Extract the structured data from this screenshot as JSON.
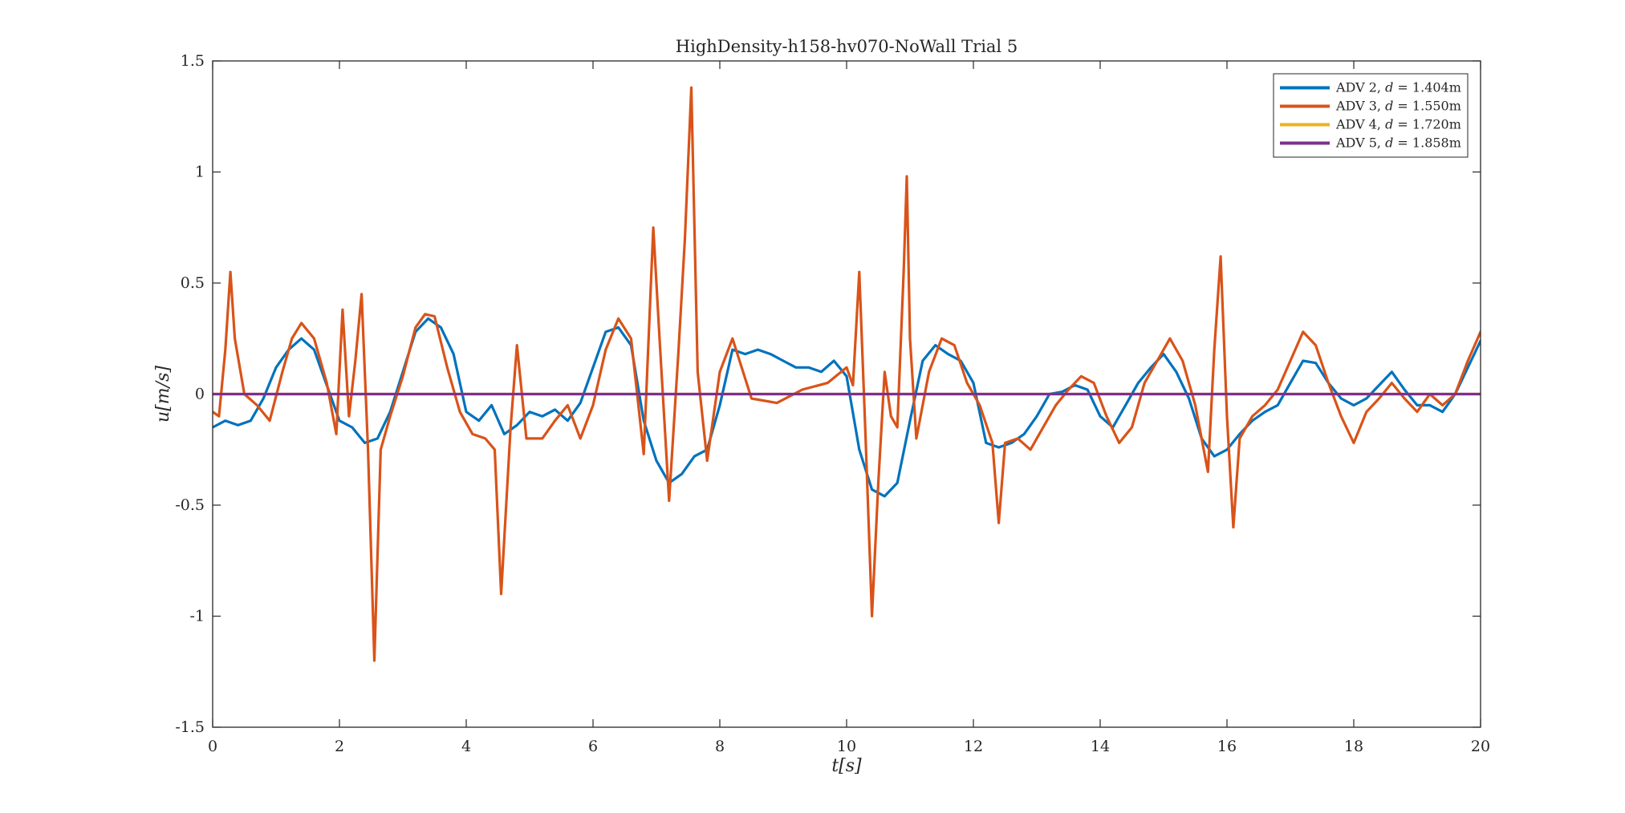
{
  "chart_data": {
    "type": "line",
    "title": "HighDensity-h158-hv070-NoWall Trial 5",
    "xlabel": "t[s]",
    "ylabel": "u[m/s]",
    "xlim": [
      0,
      20
    ],
    "ylim": [
      -1.5,
      1.5
    ],
    "xticks": [
      0,
      2,
      4,
      6,
      8,
      10,
      12,
      14,
      16,
      18,
      20
    ],
    "yticks": [
      -1.5,
      -1,
      -0.5,
      0,
      0.5,
      1,
      1.5
    ],
    "xtick_labels": [
      "0",
      "2",
      "4",
      "6",
      "8",
      "10",
      "12",
      "14",
      "16",
      "18",
      "20"
    ],
    "ytick_labels": [
      "-1.5",
      "-1",
      "-0.5",
      "0",
      "0.5",
      "1",
      "1.5"
    ],
    "grid": false,
    "legend_position": "top-right",
    "series": [
      {
        "name": "ADV 2, d = 1.404m",
        "legend_parts": [
          "ADV 2, ",
          "d",
          " = 1.404m"
        ],
        "color": "#0072BD",
        "x": [
          0,
          0.2,
          0.4,
          0.6,
          0.8,
          1.0,
          1.2,
          1.4,
          1.6,
          1.8,
          2.0,
          2.2,
          2.4,
          2.6,
          2.8,
          3.0,
          3.2,
          3.4,
          3.6,
          3.8,
          4.0,
          4.2,
          4.4,
          4.6,
          4.8,
          5.0,
          5.2,
          5.4,
          5.6,
          5.8,
          6.0,
          6.2,
          6.4,
          6.6,
          6.8,
          7.0,
          7.2,
          7.4,
          7.6,
          7.8,
          8.0,
          8.2,
          8.4,
          8.6,
          8.8,
          9.0,
          9.2,
          9.4,
          9.6,
          9.8,
          10.0,
          10.2,
          10.4,
          10.6,
          10.8,
          11.0,
          11.2,
          11.4,
          11.6,
          11.8,
          12.0,
          12.2,
          12.4,
          12.6,
          12.8,
          13.0,
          13.2,
          13.4,
          13.6,
          13.8,
          14.0,
          14.2,
          14.4,
          14.6,
          14.8,
          15.0,
          15.2,
          15.4,
          15.6,
          15.8,
          16.0,
          16.2,
          16.4,
          16.6,
          16.8,
          17.0,
          17.2,
          17.4,
          17.6,
          17.8,
          18.0,
          18.2,
          18.4,
          18.6,
          18.8,
          19.0,
          19.2,
          19.4,
          19.6,
          19.8,
          20.0
        ],
        "y": [
          -0.15,
          -0.12,
          -0.14,
          -0.12,
          -0.02,
          0.12,
          0.2,
          0.25,
          0.2,
          0.04,
          -0.12,
          -0.15,
          -0.22,
          -0.2,
          -0.08,
          0.1,
          0.28,
          0.34,
          0.3,
          0.18,
          -0.08,
          -0.12,
          -0.05,
          -0.18,
          -0.14,
          -0.08,
          -0.1,
          -0.07,
          -0.12,
          -0.04,
          0.12,
          0.28,
          0.3,
          0.22,
          -0.12,
          -0.3,
          -0.4,
          -0.36,
          -0.28,
          -0.25,
          -0.05,
          0.2,
          0.18,
          0.2,
          0.18,
          0.15,
          0.12,
          0.12,
          0.1,
          0.15,
          0.08,
          -0.25,
          -0.43,
          -0.46,
          -0.4,
          -0.12,
          0.15,
          0.22,
          0.18,
          0.15,
          0.05,
          -0.22,
          -0.24,
          -0.22,
          -0.18,
          -0.1,
          0.0,
          0.01,
          0.04,
          0.02,
          -0.1,
          -0.15,
          -0.05,
          0.05,
          0.12,
          0.18,
          0.1,
          -0.02,
          -0.2,
          -0.28,
          -0.25,
          -0.18,
          -0.12,
          -0.08,
          -0.05,
          0.05,
          0.15,
          0.14,
          0.05,
          -0.02,
          -0.05,
          -0.02,
          0.04,
          0.1,
          0.02,
          -0.05,
          -0.05,
          -0.08,
          0.0,
          0.12,
          0.24
        ]
      },
      {
        "name": "ADV 3, d = 1.550m",
        "legend_parts": [
          "ADV 3, ",
          "d",
          " = 1.550m"
        ],
        "color": "#D95319",
        "x": [
          0,
          0.1,
          0.2,
          0.28,
          0.35,
          0.5,
          0.7,
          0.9,
          1.1,
          1.25,
          1.4,
          1.6,
          1.8,
          1.95,
          2.05,
          2.15,
          2.25,
          2.35,
          2.45,
          2.55,
          2.65,
          2.8,
          3.0,
          3.2,
          3.35,
          3.5,
          3.7,
          3.9,
          4.1,
          4.3,
          4.45,
          4.55,
          4.7,
          4.8,
          4.95,
          5.2,
          5.4,
          5.6,
          5.8,
          6.0,
          6.2,
          6.4,
          6.6,
          6.8,
          6.95,
          7.05,
          7.2,
          7.35,
          7.45,
          7.55,
          7.65,
          7.8,
          8.0,
          8.2,
          8.5,
          8.9,
          9.3,
          9.7,
          10.0,
          10.1,
          10.2,
          10.3,
          10.4,
          10.5,
          10.6,
          10.7,
          10.8,
          10.9,
          10.95,
          11.0,
          11.1,
          11.3,
          11.5,
          11.7,
          11.9,
          12.1,
          12.3,
          12.4,
          12.5,
          12.7,
          12.9,
          13.1,
          13.3,
          13.5,
          13.7,
          13.9,
          14.1,
          14.3,
          14.5,
          14.7,
          14.9,
          15.1,
          15.3,
          15.5,
          15.7,
          15.8,
          15.9,
          16.0,
          16.1,
          16.2,
          16.4,
          16.6,
          16.8,
          17.0,
          17.2,
          17.4,
          17.6,
          17.8,
          18.0,
          18.2,
          18.4,
          18.6,
          18.8,
          19.0,
          19.2,
          19.4,
          19.6,
          19.8,
          20.0
        ],
        "y": [
          -0.08,
          -0.1,
          0.2,
          0.55,
          0.25,
          0.0,
          -0.05,
          -0.12,
          0.1,
          0.25,
          0.32,
          0.25,
          0.05,
          -0.18,
          0.38,
          -0.1,
          0.15,
          0.45,
          -0.25,
          -1.2,
          -0.25,
          -0.1,
          0.08,
          0.3,
          0.36,
          0.35,
          0.12,
          -0.08,
          -0.18,
          -0.2,
          -0.25,
          -0.9,
          -0.15,
          0.22,
          -0.2,
          -0.2,
          -0.12,
          -0.05,
          -0.2,
          -0.05,
          0.2,
          0.34,
          0.25,
          -0.27,
          0.75,
          0.25,
          -0.48,
          0.2,
          0.7,
          1.38,
          0.1,
          -0.3,
          0.1,
          0.25,
          -0.02,
          -0.04,
          0.02,
          0.05,
          0.12,
          0.04,
          0.55,
          -0.2,
          -1.0,
          -0.4,
          0.1,
          -0.1,
          -0.15,
          0.55,
          0.98,
          0.25,
          -0.2,
          0.1,
          0.25,
          0.22,
          0.05,
          -0.05,
          -0.22,
          -0.58,
          -0.22,
          -0.2,
          -0.25,
          -0.15,
          -0.05,
          0.02,
          0.08,
          0.05,
          -0.1,
          -0.22,
          -0.15,
          0.05,
          0.15,
          0.25,
          0.15,
          -0.05,
          -0.35,
          0.2,
          0.62,
          -0.1,
          -0.6,
          -0.2,
          -0.1,
          -0.05,
          0.02,
          0.15,
          0.28,
          0.22,
          0.05,
          -0.1,
          -0.22,
          -0.08,
          -0.02,
          0.05,
          -0.02,
          -0.08,
          0.0,
          -0.05,
          0.0,
          0.15,
          0.28
        ]
      },
      {
        "name": "ADV 4, d = 1.720m",
        "legend_parts": [
          "ADV 4, ",
          "d",
          " = 1.720m"
        ],
        "color": "#EDB120",
        "x": [
          0,
          20
        ],
        "y": [
          0,
          0
        ]
      },
      {
        "name": "ADV 5, d = 1.858m",
        "legend_parts": [
          "ADV 5, ",
          "d",
          " = 1.858m"
        ],
        "color": "#7E2F8E",
        "x": [
          0,
          20
        ],
        "y": [
          0,
          0
        ]
      }
    ]
  }
}
